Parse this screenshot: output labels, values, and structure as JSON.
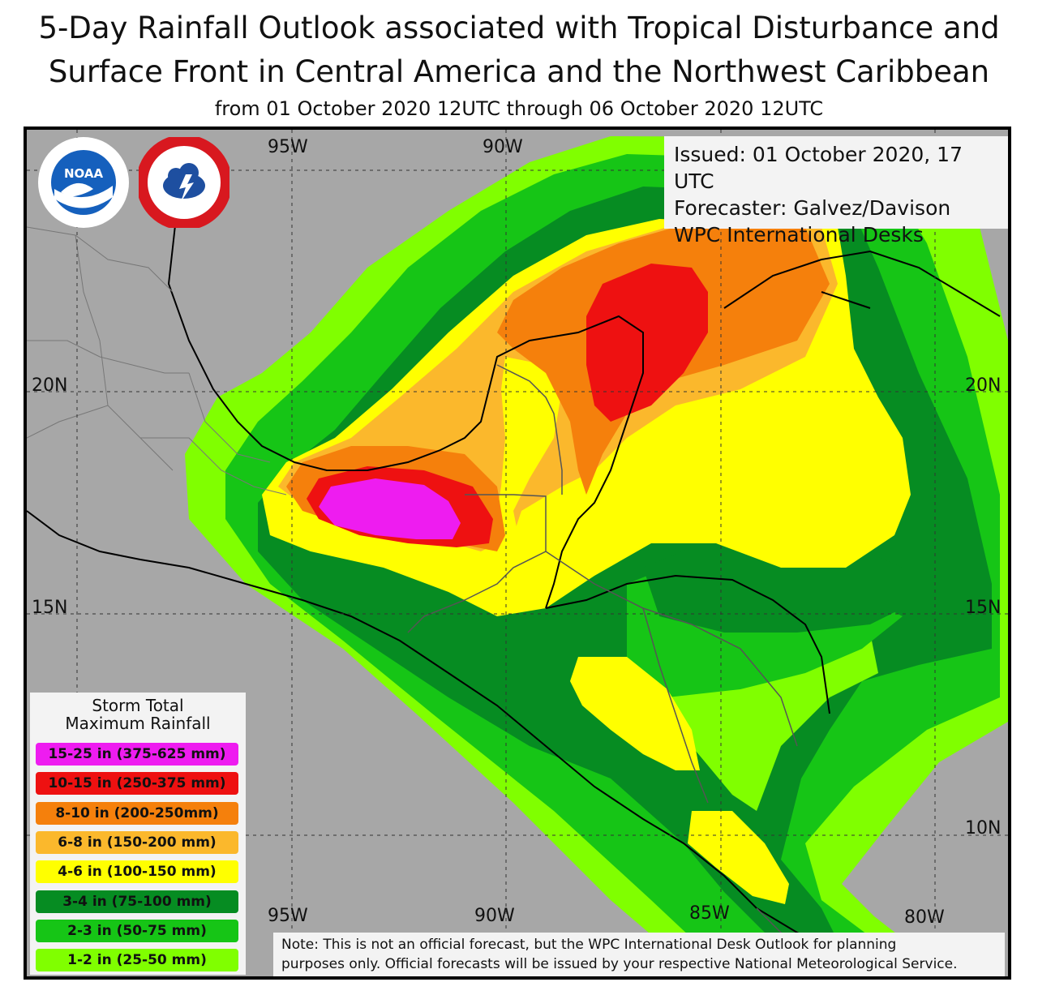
{
  "title": {
    "line1": "5-Day Rainfall Outlook associated with Tropical Disturbance and",
    "line2": "Surface Front in Central America and the Northwest Caribbean",
    "subtitle": "from 01 October 2020 12UTC through 06 October 2020 12UTC"
  },
  "issued": {
    "line1": "Issued: 01 October 2020, 17 UTC",
    "line2": "Forecaster: Galvez/Davison",
    "line3": "WPC International Desks"
  },
  "gridlabels": {
    "lon_top": [
      "95W",
      "90W"
    ],
    "lon_bottom": [
      "95W",
      "90W",
      "85W",
      "80W"
    ],
    "lat_left": [
      "20N",
      "15N"
    ],
    "lat_right": [
      "20N",
      "15N",
      "10N"
    ]
  },
  "logos": {
    "noaa": "NOAA",
    "nws_icon": "national-weather-service-seal"
  },
  "legend": {
    "title_line1": "Storm Total",
    "title_line2": "Maximum Rainfall",
    "items": [
      {
        "label": "15-25 in (375-625 mm)",
        "color": "#ee1cf0"
      },
      {
        "label": "10-15 in (250-375 mm)",
        "color": "#ee1111"
      },
      {
        "label": "8-10 in (200-250mm)",
        "color": "#f5800c"
      },
      {
        "label": "6-8 in (150-200 mm)",
        "color": "#fbb82c"
      },
      {
        "label": "4-6 in (100-150 mm)",
        "color": "#ffff00"
      },
      {
        "label": "3-4 in (75-100 mm)",
        "color": "#068c22"
      },
      {
        "label": "2-3 in (50-75 mm)",
        "color": "#16c516"
      },
      {
        "label": "1-2 in (25-50 mm)",
        "color": "#80ff00"
      }
    ]
  },
  "note": {
    "line1": "Note: This is not an official forecast, but the WPC International Desk Outlook for planning",
    "line2": "purposes only. Official forecasts will be issued by your respective National Meteorological Service."
  },
  "colors": {
    "background_land_sea": "#a7a7a7",
    "grid": "#333333",
    "border": "#000000"
  }
}
